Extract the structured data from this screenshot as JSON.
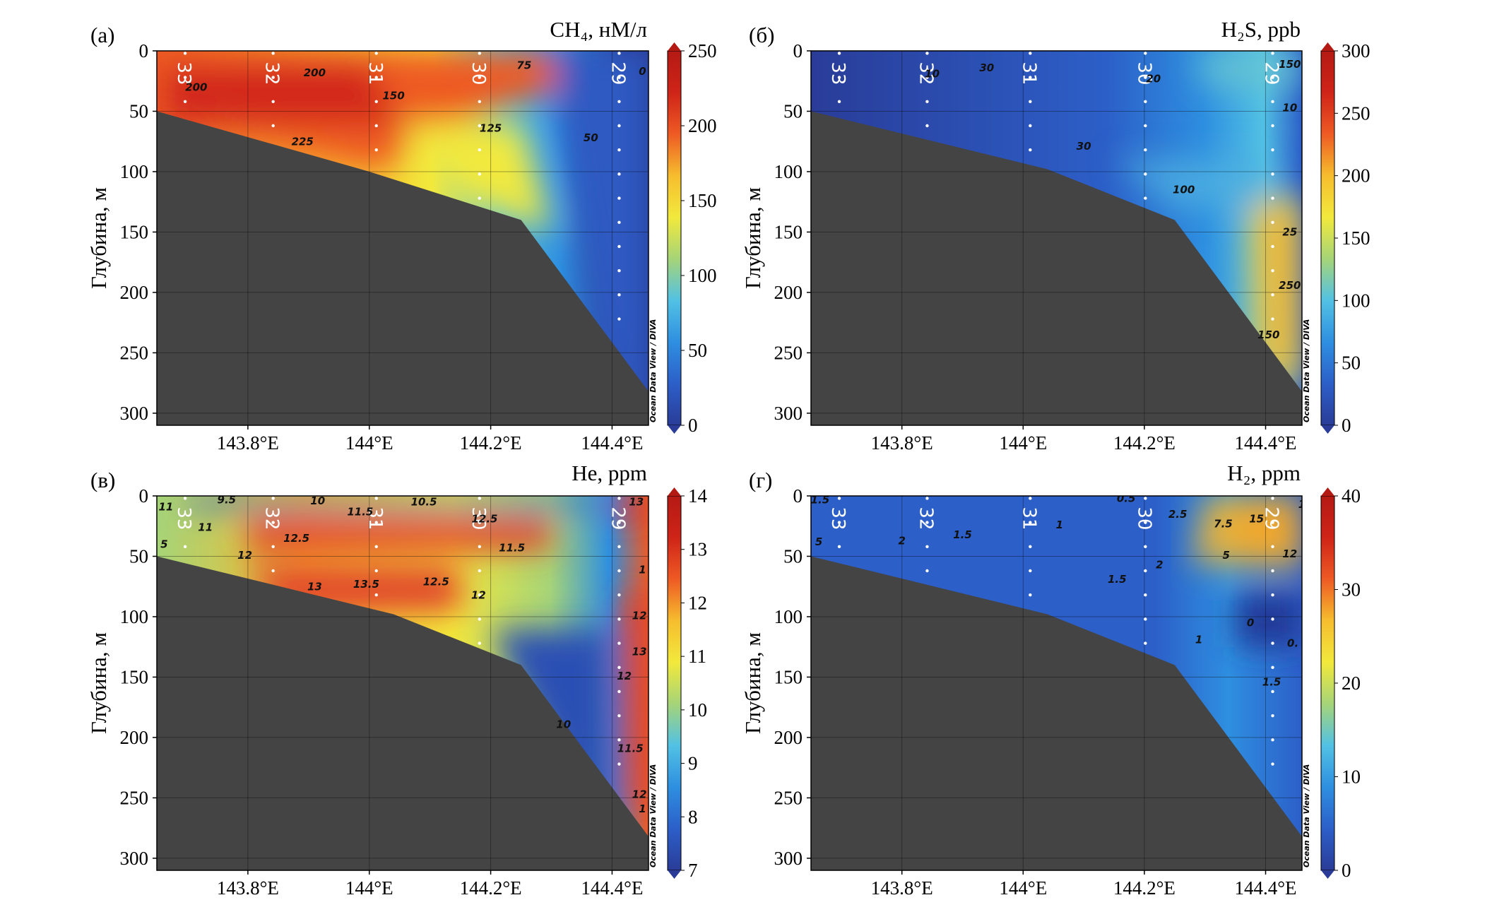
{
  "colors": {
    "terrain": "#444444",
    "stops": [
      "#2a3c98",
      "#2c5fc8",
      "#2e8fe0",
      "#52c1e4",
      "#a6d478",
      "#f2e93c",
      "#f6bd2e",
      "#ee5a24",
      "#cf2418",
      "#b41a14"
    ]
  },
  "watermark": "Ocean Data View / DIVA",
  "chart_data": [
    {
      "type": "heatmap",
      "panel_label": "(а)",
      "title": "CH₄, нМ/л",
      "ylabel": "Глубина, м",
      "x_ticks": [
        143.8,
        144.0,
        144.2,
        144.4
      ],
      "x_tick_labels": [
        "143.8°E",
        "144°E",
        "144.2°E",
        "144.4°E"
      ],
      "xlim": [
        143.65,
        144.46
      ],
      "ylim": [
        0,
        310
      ],
      "y_ticks": [
        0,
        50,
        100,
        150,
        200,
        250,
        300
      ],
      "colorbar": {
        "min": 0,
        "max": 250,
        "ticks": [
          0,
          50,
          100,
          150,
          200,
          250
        ]
      },
      "stations": [
        {
          "name": "33",
          "lon": 143.685
        },
        {
          "name": "32",
          "lon": 143.83
        },
        {
          "name": "31",
          "lon": 144.0
        },
        {
          "name": "30",
          "lon": 144.17
        },
        {
          "name": "29",
          "lon": 144.4
        }
      ],
      "bathymetry": [
        [
          143.65,
          50
        ],
        [
          144.0,
          100
        ],
        [
          144.25,
          140
        ],
        [
          144.46,
          282
        ]
      ],
      "contour_labels": [
        {
          "text": "200",
          "lon": 143.715,
          "depth": 33
        },
        {
          "text": "200",
          "lon": 143.91,
          "depth": 21
        },
        {
          "text": "225",
          "lon": 143.89,
          "depth": 78
        },
        {
          "text": "150",
          "lon": 144.04,
          "depth": 40
        },
        {
          "text": "125",
          "lon": 144.2,
          "depth": 67
        },
        {
          "text": "75",
          "lon": 144.255,
          "depth": 15
        },
        {
          "text": "50",
          "lon": 144.365,
          "depth": 75
        },
        {
          "text": "0",
          "lon": 144.45,
          "depth": 20
        }
      ]
    },
    {
      "type": "heatmap",
      "panel_label": "(б)",
      "title": "H₂S, ppb",
      "ylabel": "Глубина, м",
      "x_ticks": [
        143.8,
        144.0,
        144.2,
        144.4
      ],
      "x_tick_labels": [
        "143.8°E",
        "144°E",
        "144.2°E",
        "144.4°E"
      ],
      "xlim": [
        143.65,
        144.46
      ],
      "ylim": [
        0,
        310
      ],
      "y_ticks": [
        0,
        50,
        100,
        150,
        200,
        250,
        300
      ],
      "colorbar": {
        "min": 0,
        "max": 300,
        "ticks": [
          0,
          50,
          100,
          150,
          200,
          250,
          300
        ]
      },
      "stations": [
        {
          "name": "33",
          "lon": 143.685
        },
        {
          "name": "32",
          "lon": 143.83
        },
        {
          "name": "31",
          "lon": 144.0
        },
        {
          "name": "30",
          "lon": 144.19
        },
        {
          "name": "29",
          "lon": 144.4
        }
      ],
      "bathymetry": [
        [
          143.65,
          50
        ],
        [
          144.04,
          98
        ],
        [
          144.25,
          140
        ],
        [
          144.46,
          282
        ]
      ],
      "contour_labels": [
        {
          "text": "10",
          "lon": 143.85,
          "depth": 22
        },
        {
          "text": "30",
          "lon": 143.94,
          "depth": 17
        },
        {
          "text": "20",
          "lon": 144.215,
          "depth": 26
        },
        {
          "text": "30",
          "lon": 144.1,
          "depth": 82
        },
        {
          "text": "100",
          "lon": 144.265,
          "depth": 118
        },
        {
          "text": "150",
          "lon": 144.44,
          "depth": 14
        },
        {
          "text": "10",
          "lon": 144.44,
          "depth": 50
        },
        {
          "text": "25",
          "lon": 144.44,
          "depth": 153
        },
        {
          "text": "250",
          "lon": 144.44,
          "depth": 197
        },
        {
          "text": "150",
          "lon": 144.405,
          "depth": 238
        }
      ]
    },
    {
      "type": "heatmap",
      "panel_label": "(в)",
      "title": "He, ppm",
      "ylabel": "Глубина, м",
      "x_ticks": [
        143.8,
        144.0,
        144.2,
        144.4
      ],
      "x_tick_labels": [
        "143.8°E",
        "144°E",
        "144.2°E",
        "144.4°E"
      ],
      "xlim": [
        143.65,
        144.46
      ],
      "ylim": [
        0,
        310
      ],
      "y_ticks": [
        0,
        50,
        100,
        150,
        200,
        250,
        300
      ],
      "colorbar": {
        "min": 7,
        "max": 14,
        "ticks": [
          7,
          8,
          9,
          10,
          11,
          12,
          13,
          14
        ]
      },
      "stations": [
        {
          "name": "33",
          "lon": 143.685
        },
        {
          "name": "32",
          "lon": 143.83
        },
        {
          "name": "31",
          "lon": 144.0
        },
        {
          "name": "30",
          "lon": 144.17
        },
        {
          "name": "29",
          "lon": 144.4
        }
      ],
      "bathymetry": [
        [
          143.65,
          50
        ],
        [
          144.04,
          98
        ],
        [
          144.25,
          140
        ],
        [
          144.46,
          282
        ]
      ],
      "contour_labels": [
        {
          "text": "11",
          "lon": 143.665,
          "depth": 12
        },
        {
          "text": "9.5",
          "lon": 143.765,
          "depth": 6
        },
        {
          "text": "10",
          "lon": 143.915,
          "depth": 7
        },
        {
          "text": "10.5",
          "lon": 144.09,
          "depth": 8
        },
        {
          "text": "11.5",
          "lon": 143.985,
          "depth": 16
        },
        {
          "text": "12.5",
          "lon": 144.19,
          "depth": 22
        },
        {
          "text": "13",
          "lon": 144.44,
          "depth": 8
        },
        {
          "text": "11",
          "lon": 143.73,
          "depth": 29
        },
        {
          "text": "12.5",
          "lon": 143.88,
          "depth": 38
        },
        {
          "text": "5",
          "lon": 143.662,
          "depth": 43
        },
        {
          "text": "12",
          "lon": 143.795,
          "depth": 52
        },
        {
          "text": "11.5",
          "lon": 144.235,
          "depth": 46
        },
        {
          "text": "13",
          "lon": 143.91,
          "depth": 78
        },
        {
          "text": "13.5",
          "lon": 143.995,
          "depth": 76
        },
        {
          "text": "12.5",
          "lon": 144.11,
          "depth": 74
        },
        {
          "text": "12",
          "lon": 144.18,
          "depth": 85
        },
        {
          "text": "1",
          "lon": 144.45,
          "depth": 64
        },
        {
          "text": "12",
          "lon": 144.445,
          "depth": 102
        },
        {
          "text": "13",
          "lon": 144.445,
          "depth": 132
        },
        {
          "text": "12",
          "lon": 144.42,
          "depth": 152
        },
        {
          "text": "10",
          "lon": 144.32,
          "depth": 192
        },
        {
          "text": "11.5",
          "lon": 144.43,
          "depth": 212
        },
        {
          "text": "12",
          "lon": 144.445,
          "depth": 250
        },
        {
          "text": "1",
          "lon": 144.45,
          "depth": 262
        }
      ]
    },
    {
      "type": "heatmap",
      "panel_label": "(г)",
      "title": "H₂, ppm",
      "ylabel": "Глубина, м",
      "x_ticks": [
        143.8,
        144.0,
        144.2,
        144.4
      ],
      "x_tick_labels": [
        "143.8°E",
        "144°E",
        "144.2°E",
        "144.4°E"
      ],
      "xlim": [
        143.65,
        144.46
      ],
      "ylim": [
        0,
        310
      ],
      "y_ticks": [
        0,
        50,
        100,
        150,
        200,
        250,
        300
      ],
      "colorbar": {
        "min": 0,
        "max": 40,
        "ticks": [
          0,
          10,
          20,
          30,
          40
        ]
      },
      "stations": [
        {
          "name": "33",
          "lon": 143.685
        },
        {
          "name": "32",
          "lon": 143.83
        },
        {
          "name": "31",
          "lon": 144.0
        },
        {
          "name": "30",
          "lon": 144.19
        },
        {
          "name": "29",
          "lon": 144.4
        }
      ],
      "bathymetry": [
        [
          143.65,
          50
        ],
        [
          144.04,
          98
        ],
        [
          144.25,
          140
        ],
        [
          144.46,
          282
        ]
      ],
      "contour_labels": [
        {
          "text": "1.5",
          "lon": 143.665,
          "depth": 6
        },
        {
          "text": "0.5",
          "lon": 144.17,
          "depth": 5
        },
        {
          "text": "2.5",
          "lon": 144.255,
          "depth": 18
        },
        {
          "text": "15",
          "lon": 144.385,
          "depth": 22
        },
        {
          "text": "1",
          "lon": 144.46,
          "depth": 10
        },
        {
          "text": "1.5",
          "lon": 143.9,
          "depth": 35
        },
        {
          "text": "2",
          "lon": 143.8,
          "depth": 40
        },
        {
          "text": "1",
          "lon": 144.06,
          "depth": 27
        },
        {
          "text": "7.5",
          "lon": 144.33,
          "depth": 26
        },
        {
          "text": "5",
          "lon": 144.335,
          "depth": 52
        },
        {
          "text": "12",
          "lon": 144.44,
          "depth": 51
        },
        {
          "text": "5",
          "lon": 143.663,
          "depth": 41
        },
        {
          "text": "2",
          "lon": 144.225,
          "depth": 60
        },
        {
          "text": "1.5",
          "lon": 144.155,
          "depth": 72
        },
        {
          "text": "0",
          "lon": 144.375,
          "depth": 108
        },
        {
          "text": "0.",
          "lon": 144.445,
          "depth": 125
        },
        {
          "text": "1",
          "lon": 144.29,
          "depth": 122
        },
        {
          "text": "1.5",
          "lon": 144.41,
          "depth": 157
        }
      ]
    }
  ]
}
